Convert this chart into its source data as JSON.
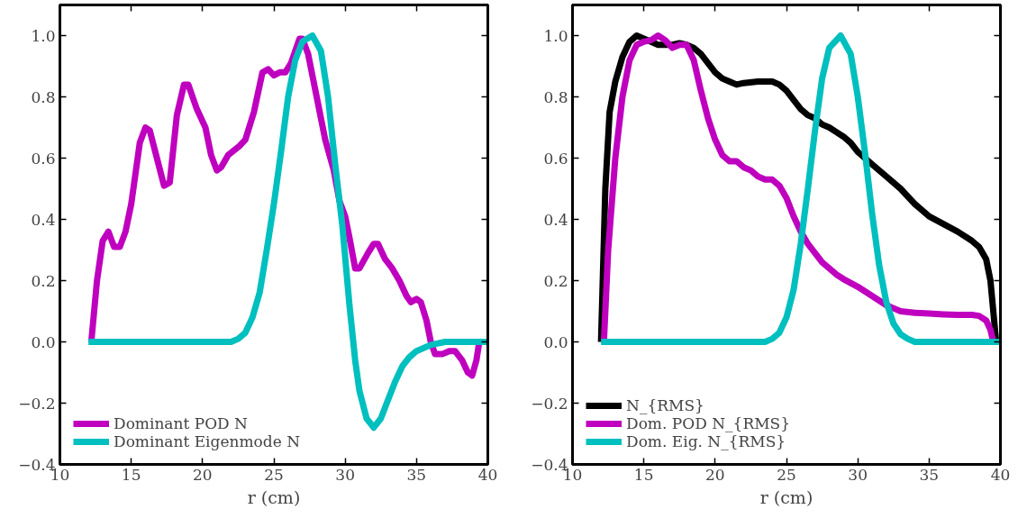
{
  "chart_data": [
    {
      "type": "line",
      "xlabel": "r (cm)",
      "xlim": [
        10,
        40
      ],
      "ylim": [
        -0.4,
        1.1
      ],
      "xticks": [
        10,
        15,
        20,
        25,
        30,
        35,
        40
      ],
      "yticks": [
        {
          "value": -0.4,
          "label": "−0.4"
        },
        {
          "value": -0.2,
          "label": "−0.2"
        },
        {
          "value": 0,
          "label": "0.0"
        },
        {
          "value": 0.2,
          "label": "0.2"
        },
        {
          "value": 0.4,
          "label": "0.4"
        },
        {
          "value": 0.6,
          "label": "0.6"
        },
        {
          "value": 0.8,
          "label": "0.8"
        },
        {
          "value": 1,
          "label": "1.0"
        }
      ],
      "grid": false,
      "legend": "bottom left",
      "line_style": "solid",
      "marker": "none",
      "series": [
        {
          "name": "Dominant POD N",
          "color": "#bf00bf",
          "x": [
            12.2,
            12.6,
            13.0,
            13.4,
            13.8,
            14.2,
            14.6,
            15.0,
            15.6,
            16.0,
            16.3,
            16.8,
            17.3,
            17.7,
            18.2,
            18.7,
            19.0,
            19.6,
            20.2,
            20.6,
            21.0,
            21.3,
            21.8,
            22.6,
            23.0,
            23.6,
            24.2,
            24.6,
            25.0,
            25.4,
            25.8,
            26.2,
            26.8,
            27.0,
            27.4,
            28.0,
            28.6,
            29.2,
            29.6,
            30.0,
            30.3,
            30.7,
            31.0,
            31.6,
            32.0,
            32.3,
            32.8,
            33.3,
            33.8,
            34.3,
            34.6,
            35.0,
            35.3,
            35.7,
            36.0,
            36.3,
            36.8,
            37.3,
            37.7,
            38.2,
            38.6,
            38.9,
            39.2,
            39.4
          ],
          "values": [
            0.0,
            0.2,
            0.33,
            0.36,
            0.31,
            0.31,
            0.36,
            0.45,
            0.65,
            0.7,
            0.69,
            0.6,
            0.51,
            0.52,
            0.74,
            0.84,
            0.84,
            0.76,
            0.7,
            0.61,
            0.56,
            0.57,
            0.61,
            0.64,
            0.66,
            0.75,
            0.88,
            0.89,
            0.87,
            0.88,
            0.88,
            0.91,
            0.99,
            0.99,
            0.94,
            0.8,
            0.66,
            0.56,
            0.46,
            0.41,
            0.34,
            0.24,
            0.24,
            0.29,
            0.32,
            0.32,
            0.27,
            0.24,
            0.2,
            0.15,
            0.13,
            0.14,
            0.13,
            0.07,
            0.0,
            -0.04,
            -0.04,
            -0.03,
            -0.03,
            -0.06,
            -0.1,
            -0.11,
            -0.06,
            0.0
          ]
        },
        {
          "name": "Dominant Eigenmode N",
          "color": "#00bfbf",
          "x": [
            12.0,
            22.0,
            22.5,
            23.0,
            23.5,
            24.0,
            24.5,
            25.0,
            25.5,
            26.0,
            26.5,
            27.0,
            27.7,
            28.3,
            28.8,
            29.3,
            29.8,
            30.3,
            30.7,
            31.0,
            31.5,
            32.0,
            32.5,
            33.0,
            33.5,
            34.0,
            34.5,
            35.0,
            36.0,
            37.0,
            40.0
          ],
          "values": [
            0.0,
            0.0,
            0.01,
            0.03,
            0.08,
            0.16,
            0.3,
            0.45,
            0.62,
            0.8,
            0.92,
            0.98,
            1.0,
            0.95,
            0.8,
            0.58,
            0.38,
            0.12,
            -0.06,
            -0.16,
            -0.25,
            -0.28,
            -0.25,
            -0.19,
            -0.13,
            -0.08,
            -0.05,
            -0.03,
            -0.01,
            0.0,
            0.0
          ]
        }
      ]
    },
    {
      "type": "line",
      "xlabel": "r (cm)",
      "xlim": [
        10,
        40
      ],
      "ylim": [
        -0.4,
        1.1
      ],
      "xticks": [
        10,
        15,
        20,
        25,
        30,
        35,
        40
      ],
      "yticks": [
        {
          "value": -0.4,
          "label": "−0.4"
        },
        {
          "value": -0.2,
          "label": "−0.2"
        },
        {
          "value": 0,
          "label": "0.0"
        },
        {
          "value": 0.2,
          "label": "0.2"
        },
        {
          "value": 0.4,
          "label": "0.4"
        },
        {
          "value": 0.6,
          "label": "0.6"
        },
        {
          "value": 0.8,
          "label": "0.8"
        },
        {
          "value": 1,
          "label": "1.0"
        }
      ],
      "grid": false,
      "legend": "bottom left",
      "line_style": "solid",
      "marker": "none",
      "series": [
        {
          "name": "N_{RMS}",
          "color": "#000000",
          "x": [
            12.0,
            12.3,
            12.6,
            13.0,
            13.5,
            14.0,
            14.5,
            15.0,
            15.5,
            16.0,
            16.5,
            17.0,
            17.5,
            18.0,
            18.5,
            19.0,
            19.5,
            20.0,
            20.5,
            21.0,
            21.5,
            22.0,
            23.0,
            24.0,
            24.5,
            25.0,
            25.5,
            26.0,
            26.5,
            27.0,
            27.5,
            28.0,
            28.5,
            29.0,
            29.5,
            30.0,
            31.0,
            32.0,
            33.0,
            34.0,
            35.0,
            36.0,
            37.0,
            38.0,
            38.5,
            39.0,
            39.3,
            39.5,
            39.7
          ],
          "values": [
            0.0,
            0.5,
            0.75,
            0.85,
            0.93,
            0.98,
            1.0,
            0.99,
            0.98,
            0.97,
            0.97,
            0.97,
            0.975,
            0.97,
            0.96,
            0.94,
            0.91,
            0.88,
            0.86,
            0.85,
            0.84,
            0.845,
            0.85,
            0.85,
            0.84,
            0.82,
            0.79,
            0.76,
            0.74,
            0.73,
            0.71,
            0.7,
            0.685,
            0.67,
            0.65,
            0.62,
            0.58,
            0.54,
            0.5,
            0.45,
            0.41,
            0.385,
            0.36,
            0.33,
            0.31,
            0.27,
            0.2,
            0.1,
            0.0
          ]
        },
        {
          "name": "Dom. POD N_{RMS}",
          "color": "#bf00bf",
          "x": [
            12.2,
            12.5,
            13.0,
            13.5,
            14.0,
            14.5,
            15.0,
            15.5,
            16.0,
            16.5,
            17.0,
            17.5,
            18.0,
            18.5,
            19.0,
            19.5,
            20.0,
            20.5,
            21.0,
            21.5,
            22.0,
            22.5,
            23.0,
            23.5,
            24.0,
            24.5,
            25.0,
            25.5,
            26.0,
            26.5,
            27.0,
            27.5,
            28.0,
            28.5,
            29.0,
            30.0,
            31.0,
            32.0,
            32.5,
            33.0,
            34.0,
            35.0,
            36.0,
            37.0,
            38.0,
            38.5,
            39.0,
            39.3,
            39.5
          ],
          "values": [
            0.0,
            0.3,
            0.6,
            0.8,
            0.92,
            0.97,
            0.98,
            0.985,
            1.0,
            0.985,
            0.96,
            0.97,
            0.97,
            0.92,
            0.82,
            0.73,
            0.66,
            0.61,
            0.59,
            0.59,
            0.57,
            0.56,
            0.54,
            0.53,
            0.53,
            0.51,
            0.47,
            0.41,
            0.36,
            0.32,
            0.29,
            0.26,
            0.24,
            0.22,
            0.205,
            0.18,
            0.15,
            0.12,
            0.11,
            0.1,
            0.095,
            0.093,
            0.09,
            0.088,
            0.088,
            0.085,
            0.07,
            0.04,
            0.0
          ]
        },
        {
          "name": "Dom. Eig. N_{RMS}",
          "color": "#00bfbf",
          "x": [
            12.0,
            23.5,
            24.0,
            24.5,
            25.0,
            25.5,
            26.0,
            26.5,
            27.0,
            27.5,
            28.0,
            28.8,
            29.5,
            30.0,
            30.5,
            31.0,
            31.5,
            32.0,
            32.5,
            33.0,
            33.5,
            34.0,
            40.0
          ],
          "values": [
            0.0,
            0.0,
            0.01,
            0.03,
            0.08,
            0.17,
            0.32,
            0.5,
            0.69,
            0.86,
            0.96,
            1.0,
            0.94,
            0.8,
            0.62,
            0.42,
            0.25,
            0.13,
            0.06,
            0.025,
            0.01,
            0.0,
            0.0
          ]
        }
      ]
    }
  ]
}
